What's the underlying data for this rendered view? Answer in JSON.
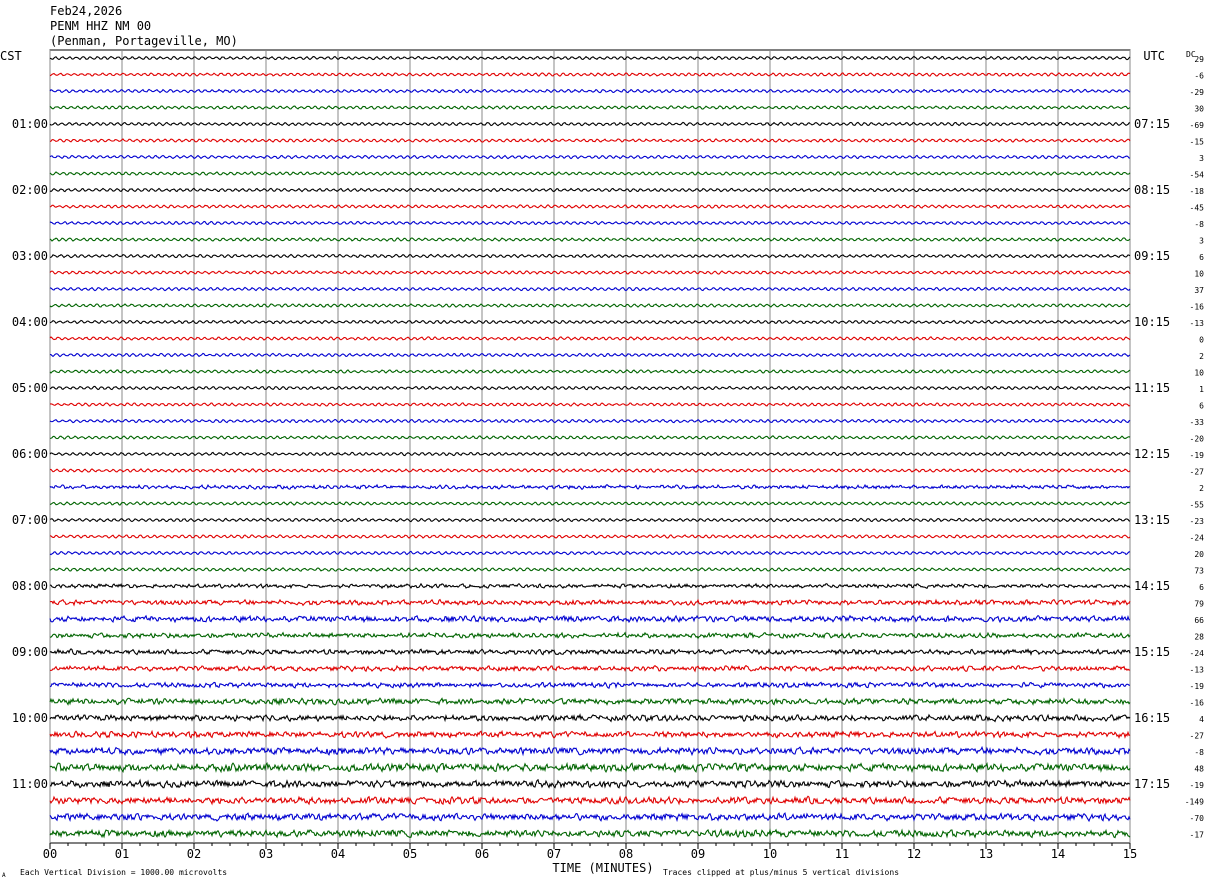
{
  "header": {
    "date": "Feb24,2026",
    "station": "PENM HHZ NM 00",
    "location": "(Penman, Portageville, MO)"
  },
  "left_tz": "CST",
  "right_tz": "UTC",
  "dc_label": "DC",
  "chart_data": {
    "type": "line",
    "title": "",
    "xlabel": "TIME (MINUTES)",
    "x_ticks": [
      "00",
      "01",
      "02",
      "03",
      "04",
      "05",
      "06",
      "07",
      "08",
      "09",
      "10",
      "11",
      "12",
      "13",
      "14",
      "15"
    ],
    "xlim": [
      0,
      15
    ],
    "left_hour_labels": [
      "01:00",
      "02:00",
      "03:00",
      "04:00",
      "05:00",
      "06:00",
      "07:00",
      "08:00",
      "09:00",
      "10:00",
      "11:00"
    ],
    "right_hour_labels": [
      "07:15",
      "08:15",
      "09:15",
      "10:15",
      "11:15",
      "12:15",
      "13:15",
      "14:15",
      "15:15",
      "16:15",
      "17:15"
    ],
    "trace_colors": [
      "#000000",
      "#e00000",
      "#0000d0",
      "#006400"
    ],
    "dc_offsets": [
      29,
      -6,
      -29,
      30,
      -69,
      -15,
      3,
      -54,
      -18,
      -45,
      -8,
      3,
      6,
      10,
      37,
      -16,
      -13,
      0,
      2,
      10,
      1,
      6,
      -33,
      -20,
      -19,
      -27,
      2,
      -55,
      -23,
      -24,
      20,
      73,
      6,
      79,
      66,
      28,
      -24,
      -13,
      -19,
      -16,
      4,
      -27,
      -8,
      48,
      -19,
      -149,
      -70,
      -17
    ],
    "noise_levels": [
      1,
      1,
      1,
      1,
      1,
      1,
      1,
      1,
      1,
      1,
      1,
      1,
      1,
      1,
      1,
      1,
      1,
      1,
      1,
      1,
      1,
      1,
      1,
      1,
      1,
      1,
      1.4,
      1,
      1,
      1,
      1,
      1,
      1.5,
      2,
      2.5,
      2,
      2,
      2,
      2,
      2.5,
      2.5,
      2.5,
      3,
      3.5,
      3,
      3,
      3,
      3
    ]
  },
  "footer": {
    "scale_note": "Each Vertical Division = 1000.00 microvolts",
    "clip_note": "Traces clipped at plus/minus 5 vertical divisions",
    "corner_mark": "A"
  }
}
